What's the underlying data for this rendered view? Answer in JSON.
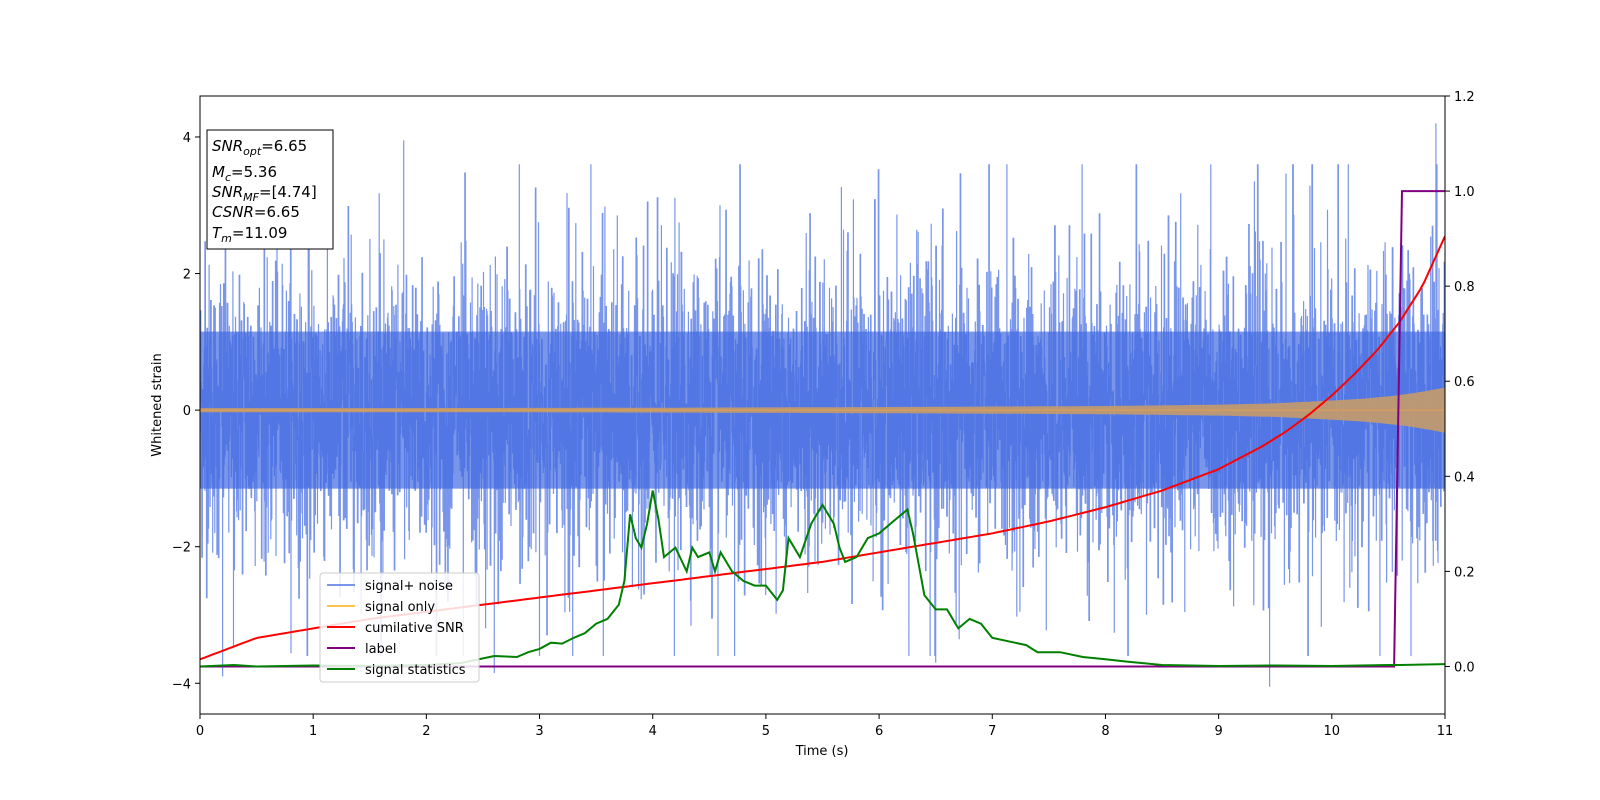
{
  "chart_data": {
    "type": "line",
    "xlabel": "Time (s)",
    "ylabel": "Whitened strain",
    "xlim": [
      0,
      11
    ],
    "ylim_left": [
      -4.45,
      4.6
    ],
    "ylim_right": [
      -0.1,
      1.2
    ],
    "xticks": [
      "0",
      "1",
      "2",
      "3",
      "4",
      "5",
      "6",
      "7",
      "8",
      "9",
      "10",
      "11"
    ],
    "yticks_left": [
      "−4",
      "−2",
      "0",
      "2",
      "4"
    ],
    "yticks_right": [
      "0.0",
      "0.2",
      "0.4",
      "0.6",
      "0.8",
      "1.0",
      "1.2"
    ],
    "annotation": {
      "lines": [
        {
          "base": "SNR",
          "sub": "opt",
          "value": "=6.65"
        },
        {
          "base": "M",
          "sub": "c",
          "value": "=5.36"
        },
        {
          "base": "SNR",
          "sub": "MF",
          "value": "=[4.74]"
        },
        {
          "base": "CSNR",
          "sub": "",
          "value": "=6.65"
        },
        {
          "base": "T",
          "sub": "m",
          "value": "=11.09"
        }
      ]
    },
    "legend": {
      "placement": "lower-left",
      "entries": [
        {
          "label": "signal+ noise",
          "color": "#4169e1"
        },
        {
          "label": "signal only",
          "color": "#ffa500"
        },
        {
          "label": "cumilative SNR",
          "color": "#ff0000"
        },
        {
          "label": "label",
          "color": "#800080"
        },
        {
          "label": "signal statistics",
          "color": "#008000"
        }
      ]
    },
    "series": [
      {
        "name": "cumilative SNR",
        "axis": "right",
        "color": "#ff0000",
        "x": [
          0,
          0.5,
          1,
          1.5,
          2,
          2.5,
          3,
          3.5,
          4,
          4.5,
          5,
          5.5,
          6,
          6.5,
          7,
          7.5,
          8,
          8.5,
          9,
          9.2,
          9.4,
          9.6,
          9.8,
          10,
          10.2,
          10.4,
          10.6,
          10.8,
          11
        ],
        "y": [
          0.015,
          0.06,
          0.08,
          0.1,
          0.115,
          0.13,
          0.145,
          0.16,
          0.175,
          0.19,
          0.205,
          0.22,
          0.24,
          0.26,
          0.28,
          0.305,
          0.335,
          0.37,
          0.415,
          0.44,
          0.465,
          0.495,
          0.53,
          0.57,
          0.615,
          0.665,
          0.725,
          0.8,
          0.905
        ]
      },
      {
        "name": "label",
        "axis": "right",
        "color": "#800080",
        "x": [
          0,
          10.55,
          10.62,
          11
        ],
        "y": [
          0,
          0,
          1,
          1
        ]
      },
      {
        "name": "signal statistics",
        "axis": "right",
        "color": "#008000",
        "x": [
          0,
          0.3,
          0.5,
          1,
          1.5,
          2,
          2.3,
          2.6,
          2.8,
          2.9,
          3,
          3.1,
          3.2,
          3.3,
          3.4,
          3.5,
          3.6,
          3.7,
          3.75,
          3.8,
          3.85,
          3.9,
          3.95,
          4,
          4.05,
          4.1,
          4.2,
          4.3,
          4.35,
          4.4,
          4.5,
          4.55,
          4.6,
          4.7,
          4.8,
          4.9,
          5,
          5.1,
          5.15,
          5.2,
          5.3,
          5.4,
          5.5,
          5.6,
          5.65,
          5.7,
          5.8,
          5.9,
          6,
          6.1,
          6.2,
          6.25,
          6.3,
          6.4,
          6.5,
          6.6,
          6.7,
          6.8,
          6.9,
          7,
          7.2,
          7.3,
          7.4,
          7.6,
          7.8,
          8,
          8.2,
          8.5,
          9,
          9.5,
          10,
          10.5,
          10.6,
          11
        ],
        "y": [
          0,
          0.003,
          0,
          0.002,
          0.001,
          0.003,
          0.007,
          0.022,
          0.02,
          0.03,
          0.037,
          0.05,
          0.048,
          0.06,
          0.07,
          0.09,
          0.1,
          0.13,
          0.18,
          0.32,
          0.27,
          0.25,
          0.3,
          0.37,
          0.31,
          0.23,
          0.25,
          0.2,
          0.25,
          0.23,
          0.24,
          0.2,
          0.24,
          0.2,
          0.18,
          0.17,
          0.17,
          0.14,
          0.16,
          0.27,
          0.23,
          0.3,
          0.34,
          0.3,
          0.25,
          0.22,
          0.23,
          0.27,
          0.28,
          0.3,
          0.32,
          0.33,
          0.28,
          0.15,
          0.12,
          0.12,
          0.08,
          0.1,
          0.09,
          0.06,
          0.05,
          0.045,
          0.03,
          0.03,
          0.02,
          0.015,
          0.01,
          0.003,
          0.001,
          0.002,
          0.001,
          0.003,
          0.003,
          0.005
        ]
      },
      {
        "name": "signal only",
        "axis": "left",
        "color": "#ffa500",
        "envelope_x": [
          0,
          2,
          4,
          6,
          8,
          9,
          9.5,
          10,
          10.3,
          10.6,
          10.8,
          11
        ],
        "envelope_y": [
          0.03,
          0.03,
          0.035,
          0.045,
          0.06,
          0.08,
          0.1,
          0.14,
          0.17,
          0.22,
          0.27,
          0.33
        ]
      },
      {
        "name": "signal+ noise",
        "axis": "left",
        "color": "#4169e1",
        "description_range": [
          -4.05,
          4.2
        ],
        "peaks": [
          {
            "x": 0.2,
            "y": -3.9
          },
          {
            "x": 1.8,
            "y": 3.95
          },
          {
            "x": 2.6,
            "y": -3.85
          },
          {
            "x": 6.5,
            "y": -3.7
          },
          {
            "x": 9.45,
            "y": -4.05
          },
          {
            "x": 10.92,
            "y": 4.2
          }
        ]
      }
    ]
  }
}
